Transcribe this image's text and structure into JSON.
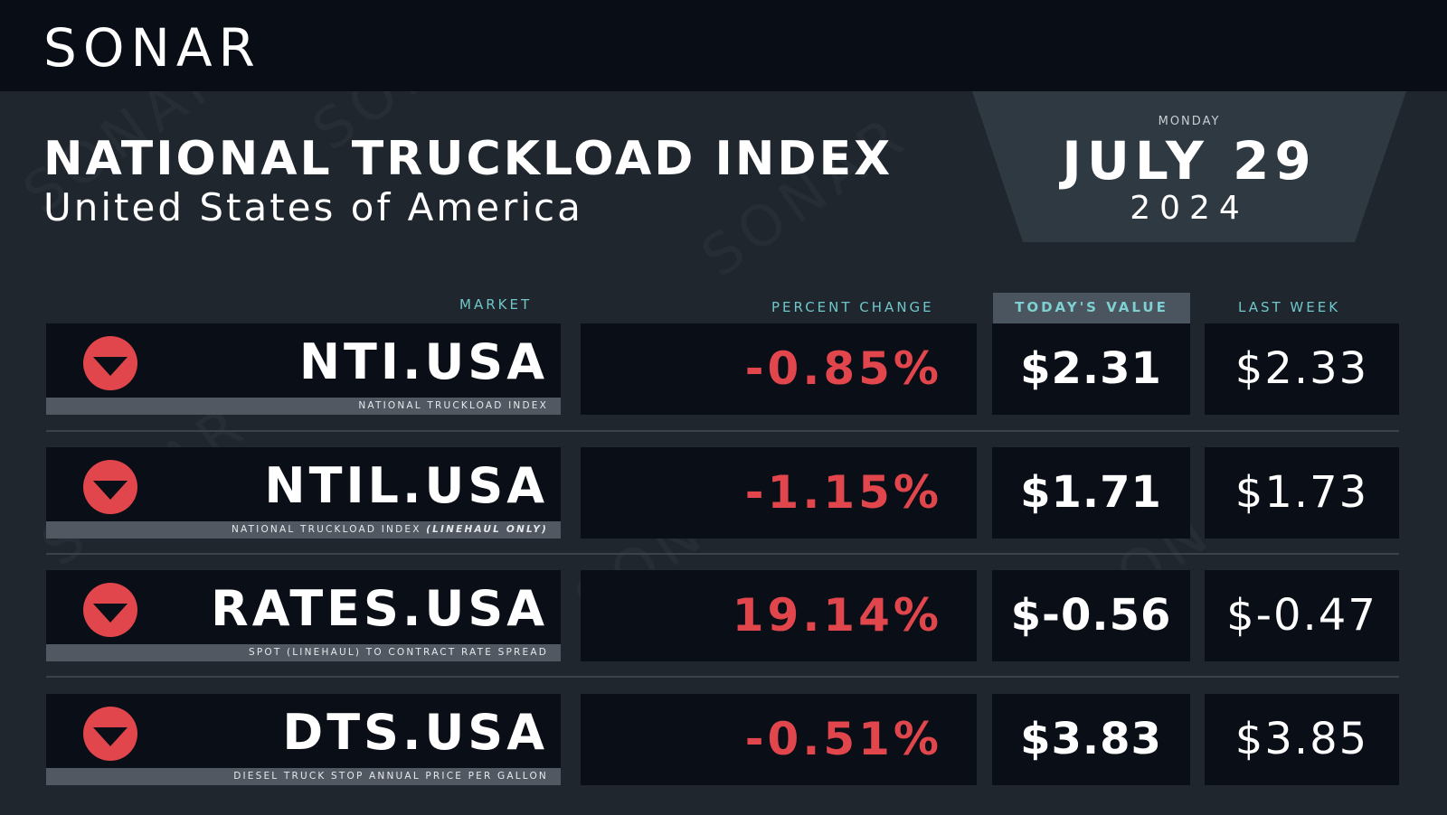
{
  "brand": {
    "logo_text": "SONAR"
  },
  "header": {
    "title": "NATIONAL TRUCKLOAD INDEX",
    "subtitle": "United States of America"
  },
  "date": {
    "weekday": "MONDAY",
    "month_day": "JULY 29",
    "year": "2024"
  },
  "columns": {
    "market": "MARKET",
    "percent_change": "PERCENT CHANGE",
    "todays_value": "TODAY'S VALUE",
    "last_week": "LAST WEEK"
  },
  "colors": {
    "background": "#1f262e",
    "top_bar": "#090d16",
    "cell": "#0a0e17",
    "accent_teal": "#6fc7c9",
    "negative_red": "#e0464b"
  },
  "rows": [
    {
      "code": "NTI.USA",
      "description": "NATIONAL TRUCKLOAD INDEX",
      "direction_icon": "down-arrow-icon",
      "percent_change": "-0.85%",
      "todays_value": "$2.31",
      "last_week": "$2.33"
    },
    {
      "code": "NTIL.USA",
      "description": "NATIONAL TRUCKLOAD INDEX",
      "description_note": "(LINEHAUL ONLY)",
      "direction_icon": "down-arrow-icon",
      "percent_change": "-1.15%",
      "todays_value": "$1.71",
      "last_week": "$1.73"
    },
    {
      "code": "RATES.USA",
      "description": "SPOT (LINEHAUL) TO CONTRACT RATE SPREAD",
      "direction_icon": "down-arrow-icon",
      "percent_change": "19.14%",
      "todays_value": "$-0.56",
      "last_week": "$-0.47"
    },
    {
      "code": "DTS.USA",
      "description": "DIESEL TRUCK STOP ANNUAL PRICE PER GALLON",
      "direction_icon": "down-arrow-icon",
      "percent_change": "-0.51%",
      "todays_value": "$3.83",
      "last_week": "$3.85"
    }
  ]
}
